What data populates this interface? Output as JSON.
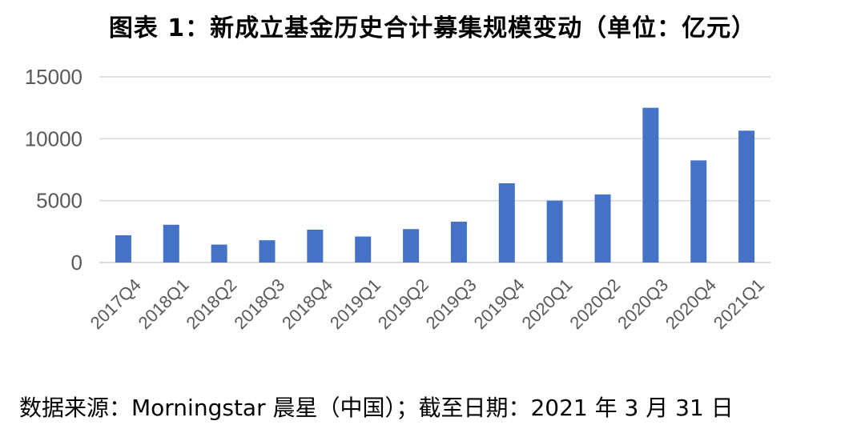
{
  "title": "图表 1：新成立基金历史合计募集规模变动（单位：亿元）",
  "source": "数据来源：Morningstar 晨星（中国）；截至日期：2021 年 3 月 31 日",
  "chart_data": {
    "type": "bar",
    "title": "图表 1：新成立基金历史合计募集规模变动（单位：亿元）",
    "categories": [
      "2017Q4",
      "2018Q1",
      "2018Q2",
      "2018Q3",
      "2018Q4",
      "2019Q1",
      "2019Q2",
      "2019Q3",
      "2019Q4",
      "2020Q1",
      "2020Q2",
      "2020Q3",
      "2020Q4",
      "2021Q1"
    ],
    "values": [
      2200,
      3050,
      1450,
      1800,
      2650,
      2100,
      2700,
      3300,
      6400,
      5000,
      5500,
      12500,
      8250,
      10650
    ],
    "ylim": [
      0,
      15000
    ],
    "yticks": [
      0,
      5000,
      10000,
      15000
    ],
    "xlabel": "",
    "ylabel": "",
    "grid": true,
    "legend": false,
    "bar_color": "#4472C4",
    "grid_color": "#D9D9D9",
    "tick_color": "#595959"
  }
}
